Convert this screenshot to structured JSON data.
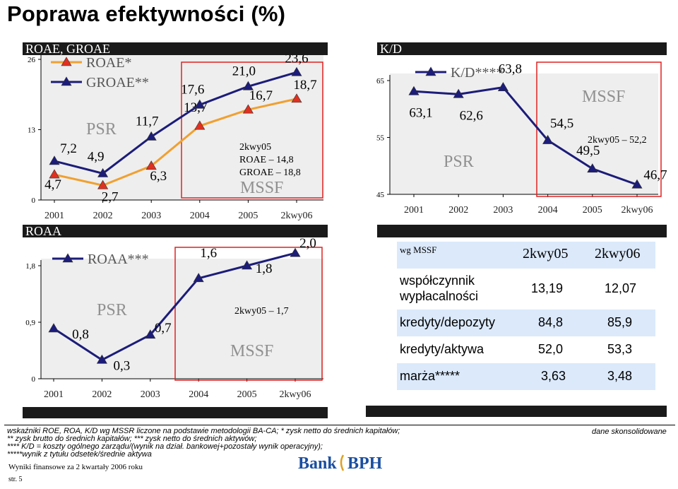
{
  "title": "Poprawa efektywności (%)",
  "colors": {
    "groae": "#1c1c7a",
    "roae": "#f0a030",
    "roae_marker": "#e03020",
    "roaa": "#1c1c7a",
    "kd": "#1c1c7a",
    "highlight_box": "#e02020",
    "header_bar": "#1a1a1a",
    "table_highlight": "#dbe9fb"
  },
  "chart_data": [
    {
      "type": "line",
      "header": "ROAE, GROAE",
      "categories": [
        "2001",
        "2002",
        "2003",
        "2004",
        "2005",
        "2kwy06"
      ],
      "ylim": [
        0,
        26
      ],
      "yticks": [
        "0",
        "13",
        "26"
      ],
      "series": [
        {
          "name": "ROAE*",
          "values": [
            4.7,
            2.7,
            6.3,
            13.7,
            16.7,
            18.7
          ],
          "labels": [
            "4,7",
            "2,7",
            "6,3",
            "13,7",
            "16,7",
            "18,7"
          ]
        },
        {
          "name": "GROAE**",
          "values": [
            7.2,
            4.9,
            11.7,
            17.6,
            21.0,
            23.6
          ],
          "labels": [
            "7,2",
            "4,9",
            "11,7",
            "17,6",
            "21,0",
            "23,6"
          ]
        }
      ],
      "annotations": [
        "PSR",
        "MSSF"
      ],
      "note": [
        "2kwy05",
        "ROAE – 14,8",
        "GROAE – 18,8"
      ]
    },
    {
      "type": "line",
      "header": "ROAA",
      "categories": [
        "2001",
        "2002",
        "2003",
        "2004",
        "2005",
        "2kwy06"
      ],
      "ylim": [
        0,
        1.8
      ],
      "yticks": [
        "0",
        "0,9",
        "1,8"
      ],
      "series": [
        {
          "name": "ROAA***",
          "values": [
            0.8,
            0.3,
            0.7,
            1.6,
            1.8,
            2.0
          ],
          "labels": [
            "0,8",
            "0,3",
            "0,7",
            "1,6",
            "1,8",
            "2,0"
          ]
        }
      ],
      "annotations": [
        "PSR",
        "MSSF"
      ],
      "note": [
        "2kwy05 – 1,7"
      ]
    },
    {
      "type": "line",
      "header": "K/D",
      "categories": [
        "2001",
        "2002",
        "2003",
        "2004",
        "2005",
        "2kwy06"
      ],
      "ylim": [
        45,
        65
      ],
      "yticks": [
        "45",
        "55",
        "65"
      ],
      "series": [
        {
          "name": "K/D****",
          "values": [
            63.1,
            62.6,
            63.8,
            54.5,
            49.5,
            46.7
          ],
          "labels": [
            "63,1",
            "62,6",
            "63,8",
            "54,5",
            "49,5",
            "46,7"
          ]
        }
      ],
      "annotations": [
        "PSR",
        "MSSF"
      ],
      "note": [
        "2kwy05 – 52,2"
      ]
    },
    {
      "type": "table",
      "caption": "wg MSSF",
      "columns": [
        "2kwy05",
        "2kwy06"
      ],
      "rows": [
        {
          "label": "współczynnik wypłacalności",
          "values": [
            "13,19",
            "12,07"
          ]
        },
        {
          "label": "kredyty/depozyty",
          "values": [
            "84,8",
            "85,9"
          ]
        },
        {
          "label": "kredyty/aktywa",
          "values": [
            "52,0",
            "53,3"
          ]
        },
        {
          "label": "marża*****",
          "values": [
            "3,63",
            "3,48"
          ]
        }
      ]
    }
  ],
  "footnotes": [
    "wskaźniki ROE, ROA, K/D wg MSSR liczone na podstawie metodologii BA-CA; * zysk netto do średnich kapitałów;",
    "** zysk brutto do średnich kapitałów; *** zysk netto do średnich aktywów;",
    "**** K/D = koszty ogólnego zarządu/(wynik na dział. bankowej+pozostały wynik operacyjny);",
    "*****wynik z tytułu odsetek/średnie aktywa"
  ],
  "consolidated_note": "dane skonsolidowane",
  "footer": {
    "report": "Wyniki finansowe za 2 kwartały 2006 roku",
    "page": "str. 5"
  },
  "logo": {
    "text": "Bank BPH"
  }
}
